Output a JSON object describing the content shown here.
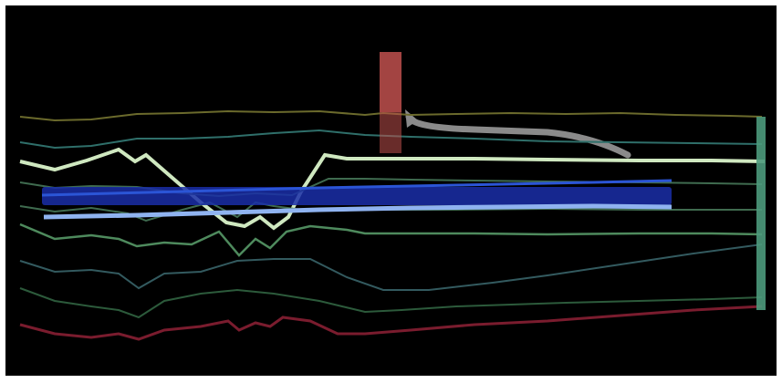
{
  "scene": {
    "background": "#000000",
    "frame": "#ffffff",
    "lines": [
      {
        "name": "olive-trace",
        "color": "#6b6a2c",
        "weight": "thin"
      },
      {
        "name": "teal-trace",
        "color": "#2f6f6a",
        "weight": "thin"
      },
      {
        "name": "pale-green-trace",
        "color": "#cfe8c0",
        "weight": "bold"
      },
      {
        "name": "dark-green-trace-1",
        "color": "#3f6b4f",
        "weight": "thin"
      },
      {
        "name": "dark-green-trace-2",
        "color": "#3f6b4f",
        "weight": "thin"
      },
      {
        "name": "mid-green-trace",
        "color": "#4e8a5d",
        "weight": "thin"
      },
      {
        "name": "slate-trace",
        "color": "#335a5f",
        "weight": "thin"
      },
      {
        "name": "forest-trace",
        "color": "#2c5a3b",
        "weight": "thin"
      },
      {
        "name": "crimson-trace",
        "color": "#7a1c2e",
        "weight": "thin"
      }
    ],
    "bands": [
      {
        "name": "deep-blue-band",
        "color": "#1a2ea8"
      },
      {
        "name": "light-blue-band",
        "color": "#8fb3f0"
      }
    ],
    "marker": {
      "color": "#c0504d"
    },
    "arrow": {
      "color": "#8a8a8a"
    },
    "right_bar": {
      "color": "#4c9a7c"
    }
  }
}
